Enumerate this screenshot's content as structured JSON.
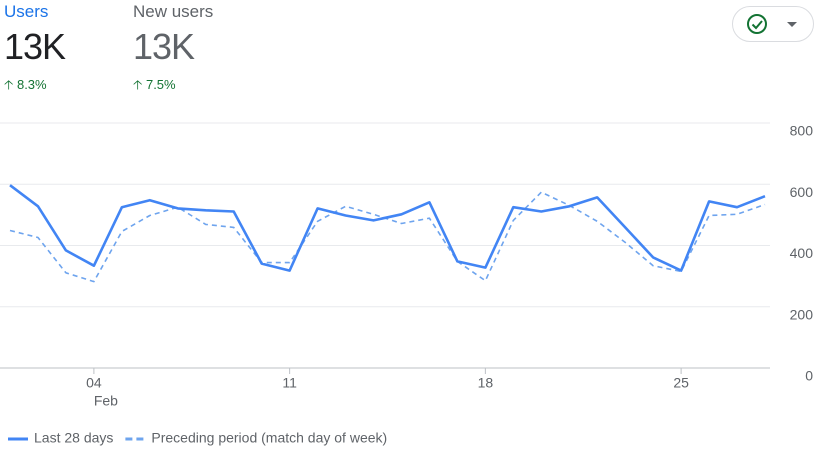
{
  "metrics": [
    {
      "label": "Users",
      "value": "13K",
      "change": "8.3%"
    },
    {
      "label": "New users",
      "value": "13K",
      "change": "7.5%"
    }
  ],
  "chart_data": {
    "type": "line",
    "categories": [
      null,
      null,
      null,
      "04",
      null,
      null,
      null,
      null,
      null,
      null,
      "11",
      null,
      null,
      null,
      null,
      null,
      null,
      "18",
      null,
      null,
      null,
      null,
      null,
      null,
      "25",
      null,
      null,
      null
    ],
    "month_label": "Feb",
    "series": [
      {
        "name": "Last 28 days",
        "color": "#4285f4",
        "dashed": false,
        "values": [
          597,
          528,
          384,
          334,
          525,
          548,
          521,
          515,
          511,
          341,
          318,
          521,
          498,
          482,
          502,
          541,
          348,
          328,
          525,
          511,
          528,
          557,
          459,
          361,
          318,
          544,
          525,
          561
        ]
      },
      {
        "name": "Preceding period (match day of week)",
        "color": "#6ea4ee",
        "dashed": true,
        "values": [
          449,
          426,
          311,
          282,
          446,
          498,
          525,
          469,
          459,
          344,
          344,
          479,
          528,
          502,
          472,
          489,
          348,
          285,
          482,
          574,
          531,
          479,
          410,
          334,
          315,
          498,
          502,
          534
        ]
      }
    ],
    "ylim": [
      0,
      800
    ],
    "yticks": [
      0,
      200,
      400,
      600,
      800
    ],
    "grid": true
  }
}
